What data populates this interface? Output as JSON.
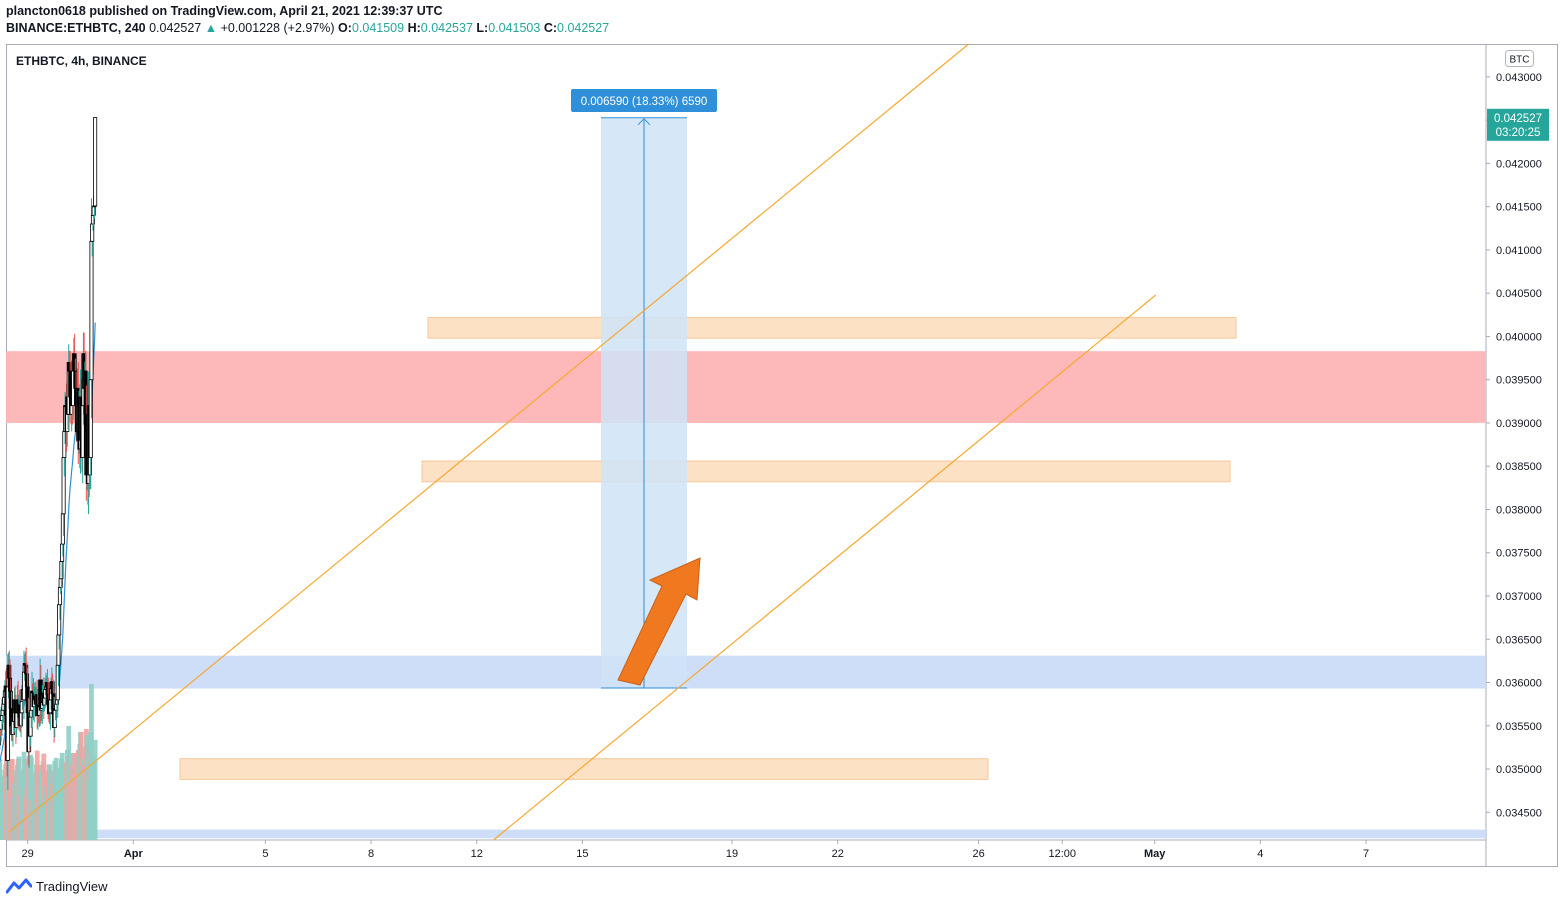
{
  "header": {
    "publisher_line": "plancton0618 published on TradingView.com, April 21, 2021 12:39:37 UTC",
    "symbol": "BINANCE:ETHBTC, 240",
    "last": "0.042527",
    "change_arrow": "▲",
    "change": "+0.001228 (+2.97%)",
    "o_label": "O:",
    "o": "0.041509",
    "h_label": "H:",
    "h": "0.042537",
    "l_label": "L:",
    "l": "0.041503",
    "c_label": "C:",
    "c": "0.042527"
  },
  "chart_title": "ETHBTC, 4h, BINANCE",
  "currency_badge": "BTC",
  "measure_label": "0.006590 (18.33%) 6590",
  "price_label": {
    "price": "0.042527",
    "countdown": "03:20:25"
  },
  "footer": {
    "brand": "TradingView",
    "logo_icon": "tradingview-logo-icon"
  },
  "colors": {
    "up": "#26a69a",
    "down": "#ef5350",
    "vol_up": "#8fcfc6",
    "vol_down": "#f3a4a2",
    "ma": "#2f8fd8",
    "trend": "#f7a72f",
    "resistance": "#fdb5b5",
    "orange_zone": "#fcdcbb",
    "blue_zone": "#c6d8f7",
    "measure": "#cfe3f7",
    "measure_label_bg": "#2f8fd8",
    "arrow": "#f0781e"
  },
  "chart_data": {
    "type": "candlestick",
    "symbol": "ETHBTC",
    "timeframe": "4h",
    "exchange": "BINANCE",
    "y_axis": {
      "range": [
        0.03418,
        0.04338
      ],
      "ticks": [
        "0.043000",
        "0.042500",
        "0.042000",
        "0.041500",
        "0.041000",
        "0.040500",
        "0.040000",
        "0.039500",
        "0.039000",
        "0.038500",
        "0.038000",
        "0.037500",
        "0.037000",
        "0.036500",
        "0.036000",
        "0.035500",
        "0.035000",
        "0.034500"
      ]
    },
    "x_axis": {
      "range": [
        -118,
        7950
      ],
      "ticks": [
        {
          "t": 0,
          "label": "29"
        },
        {
          "t": 576,
          "label": "Apr"
        },
        {
          "t": 1296,
          "label": "5"
        },
        {
          "t": 1872,
          "label": "8"
        },
        {
          "t": 2448,
          "label": "12"
        },
        {
          "t": 3024,
          "label": "15"
        },
        {
          "t": 3840,
          "label": "19"
        },
        {
          "t": 4416,
          "label": "22"
        },
        {
          "t": 5184,
          "label": "26"
        },
        {
          "t": 5640,
          "label": "12:00"
        },
        {
          "t": 6144,
          "label": "May"
        },
        {
          "t": 6720,
          "label": "4"
        },
        {
          "t": 7296,
          "label": "7"
        }
      ]
    },
    "candle_interval_hours": 4,
    "first_candle_t": -216,
    "closes": [
      0.03468,
      0.03478,
      0.03485,
      0.03495,
      0.0349,
      0.035,
      0.03505,
      0.03495,
      0.03502,
      0.0351,
      0.0352,
      0.03515,
      0.03525,
      0.03532,
      0.03528,
      0.0354,
      0.0355,
      0.03546,
      0.03556,
      0.03562,
      0.03568,
      0.03575,
      0.03583,
      0.0359,
      0.03596,
      0.03545,
      0.0351,
      0.03595,
      0.0362,
      0.03605,
      0.0359,
      0.0357,
      0.0355,
      0.0354,
      0.0356,
      0.03555,
      0.0358,
      0.03565,
      0.03548,
      0.03565,
      0.0358,
      0.03565,
      0.03574,
      0.0356,
      0.0355,
      0.03565,
      0.03578,
      0.03592,
      0.0358,
      0.03612,
      0.03622,
      0.0362,
      0.0361,
      0.03595,
      0.03565,
      0.0352,
      0.0356,
      0.03538,
      0.0356,
      0.03568,
      0.0359,
      0.03588,
      0.03572,
      0.0358,
      0.03584,
      0.03575,
      0.03586,
      0.03562,
      0.03574,
      0.03562,
      0.03572,
      0.03603,
      0.03568,
      0.0357,
      0.03577,
      0.03588,
      0.03574,
      0.03582,
      0.03592,
      0.03595,
      0.036,
      0.03586,
      0.03575,
      0.03564,
      0.03565,
      0.0358,
      0.03593,
      0.03601,
      0.03587,
      0.03564,
      0.03548,
      0.0357,
      0.03568,
      0.03575,
      0.0358,
      0.0362,
      0.03655,
      0.0369,
      0.0371,
      0.0372,
      0.0374,
      0.0376,
      0.03795,
      0.0386,
      0.0389,
      0.0392,
      0.0392,
      0.0389,
      0.0393,
      0.0391,
      0.0397,
      0.0396,
      0.0393,
      0.0391,
      0.0395,
      0.0392,
      0.0396,
      0.0398,
      0.0396,
      0.0394,
      0.0392,
      0.0389,
      0.0394,
      0.0388,
      0.0392,
      0.0387,
      0.0393,
      0.0388,
      0.0386,
      0.0392,
      0.0398,
      0.0394,
      0.0396,
      0.0391,
      0.0384,
      0.0389,
      0.0383,
      0.0392,
      0.0384,
      0.0386,
      0.0395,
      0.0411,
      0.0413,
      0.0414,
      0.0415,
      0.04151,
      0.04253
    ],
    "series": [
      {
        "name": "ETHBTC",
        "type": "candlestick",
        "note": "closes listed above"
      },
      {
        "name": "moving average",
        "type": "line",
        "color": "#2f8fd8"
      },
      {
        "name": "volume",
        "type": "histogram"
      }
    ],
    "last_price": 0.042527,
    "measurement": {
      "from": 0.035937,
      "to": 0.042527,
      "change": 0.00659,
      "change_pct": 18.33,
      "ticks": 6590
    },
    "zones": [
      {
        "type": "resistance",
        "color": "#fdb5b5",
        "price_from": 0.039,
        "price_to": 0.03983
      },
      {
        "type": "orange",
        "price_from": 0.03998,
        "price_to": 0.04022
      },
      {
        "type": "orange",
        "price_from": 0.03832,
        "price_to": 0.03856
      },
      {
        "type": "orange",
        "price_from": 0.03488,
        "price_to": 0.03512
      },
      {
        "type": "blue",
        "price_from": 0.03593,
        "price_to": 0.03631
      },
      {
        "type": "blue",
        "price_from": 0.0342,
        "price_to": 0.0343
      }
    ],
    "trend_lines": [
      {
        "from": [
          -96,
          0.03428
        ],
        "to": [
          5130,
          0.04338
        ]
      },
      {
        "from": [
          2540,
          0.03418
        ],
        "to": [
          6150,
          0.04048
        ]
      }
    ],
    "grid": false
  }
}
